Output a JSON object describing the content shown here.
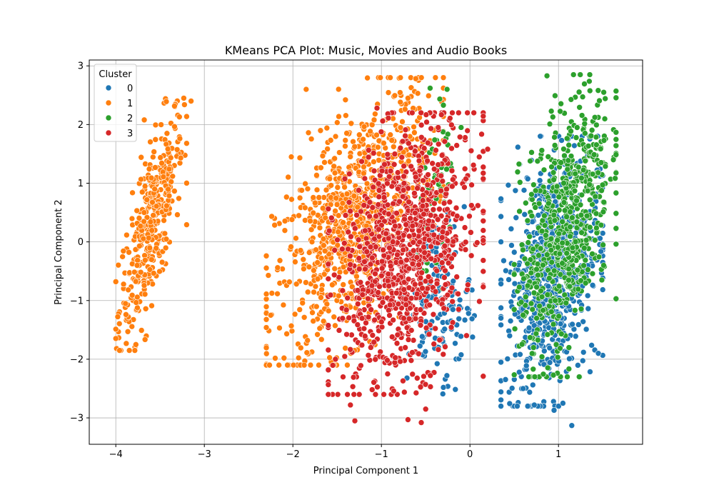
{
  "chart_data": {
    "type": "scatter",
    "title": "KMeans PCA Plot: Music, Movies and Audio Books",
    "xlabel": "Principal Component 1",
    "ylabel": "Principal Component 2",
    "xlim": [
      -4.3,
      1.95
    ],
    "ylim": [
      -3.45,
      3.1
    ],
    "xticks": [
      -4,
      -3,
      -2,
      -1,
      0,
      1
    ],
    "yticks": [
      -3,
      -2,
      -1,
      0,
      1,
      2,
      3
    ],
    "grid": true,
    "legend": {
      "title": "Cluster",
      "placement": "top-left"
    },
    "series": [
      {
        "name": "0",
        "color": "#1f77b4",
        "clusters": [
          {
            "x_range": [
              0.35,
              1.5
            ],
            "y_range": [
              -2.8,
              1.8
            ],
            "n": 700,
            "corr": 0.25
          },
          {
            "x_range": [
              -0.75,
              0.05
            ],
            "y_range": [
              -2.6,
              0.6
            ],
            "n": 140,
            "corr": 0.1
          }
        ],
        "points": [
          [
            1.15,
            -3.13
          ],
          [
            0.95,
            -2.87
          ],
          [
            1.05,
            -2.75
          ],
          [
            0.6,
            -2.5
          ],
          [
            -0.3,
            -2.48
          ],
          [
            1.45,
            -1.9
          ]
        ]
      },
      {
        "name": "1",
        "color": "#ff7f0e",
        "clusters": [
          {
            "x_range": [
              -4.0,
              -3.2
            ],
            "y_range": [
              -1.85,
              2.45
            ],
            "n": 380,
            "corr": 0.75
          },
          {
            "x_range": [
              -2.3,
              -0.3
            ],
            "y_range": [
              -2.1,
              2.8
            ],
            "n": 900,
            "corr": 0.55
          }
        ],
        "points": [
          [
            -3.15,
            2.4
          ],
          [
            -2.1,
            -1.98
          ],
          [
            -0.9,
            2.8
          ],
          [
            -0.7,
            2.45
          ],
          [
            -1.85,
            2.6
          ],
          [
            -2.25,
            -1.25
          ]
        ]
      },
      {
        "name": "2",
        "color": "#2ca02c",
        "clusters": [
          {
            "x_range": [
              0.5,
              1.65
            ],
            "y_range": [
              -2.3,
              2.85
            ],
            "n": 650,
            "corr": 0.5
          },
          {
            "x_range": [
              -0.6,
              -0.1
            ],
            "y_range": [
              -0.8,
              2.6
            ],
            "n": 50,
            "corr": 0.3
          }
        ],
        "points": [
          [
            0.87,
            2.83
          ],
          [
            -0.45,
            2.62
          ],
          [
            -0.3,
            2.33
          ],
          [
            -0.1,
            1.95
          ],
          [
            1.62,
            1.4
          ]
        ]
      },
      {
        "name": "3",
        "color": "#d62728",
        "clusters": [
          {
            "x_range": [
              -1.6,
              0.15
            ],
            "y_range": [
              -2.6,
              2.2
            ],
            "n": 1000,
            "corr": 0.35
          }
        ],
        "points": [
          [
            -1.3,
            -3.05
          ],
          [
            -0.55,
            -3.08
          ],
          [
            -1.35,
            -2.78
          ],
          [
            -0.7,
            -3.03
          ],
          [
            -0.5,
            -2.85
          ],
          [
            0.2,
            1.58
          ],
          [
            -1.05,
            2.28
          ]
        ]
      }
    ]
  }
}
